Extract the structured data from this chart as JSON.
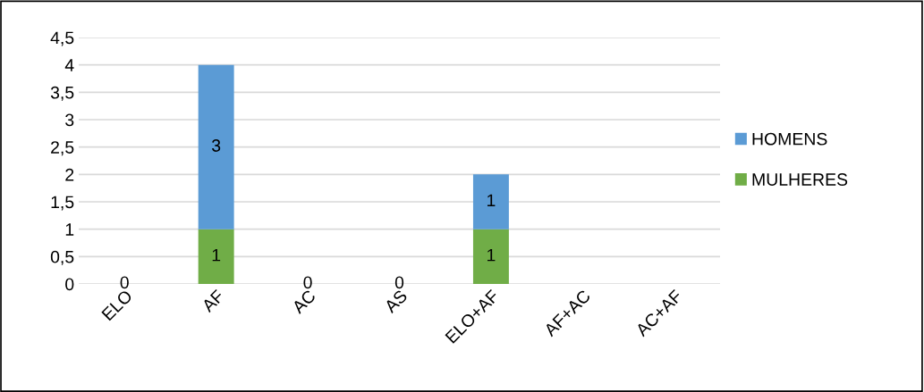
{
  "chart_data": {
    "type": "bar",
    "stacked": true,
    "categories": [
      "ELO",
      "AF",
      "AC",
      "AS",
      "ELO+AF",
      "AF+AC",
      "AC+AF"
    ],
    "series": [
      {
        "name": "MULHERES",
        "color": "#70ad47",
        "values": [
          0,
          1,
          0,
          0,
          1,
          null,
          null
        ]
      },
      {
        "name": "HOMENS",
        "color": "#5b9bd5",
        "values": [
          null,
          3,
          null,
          null,
          1,
          null,
          null
        ]
      }
    ],
    "ylim": [
      0,
      4.5
    ],
    "yticks": [
      0,
      {
        "value": 0.5,
        "label": "0,5"
      },
      1,
      {
        "value": 1.5,
        "label": "1,5"
      },
      2,
      {
        "value": 2.5,
        "label": "2,5"
      },
      3,
      {
        "value": 3.5,
        "label": "3,5"
      },
      4,
      {
        "value": 4.5,
        "label": "4,5"
      }
    ],
    "grid": "y",
    "legend": "right",
    "data_labels": true
  }
}
